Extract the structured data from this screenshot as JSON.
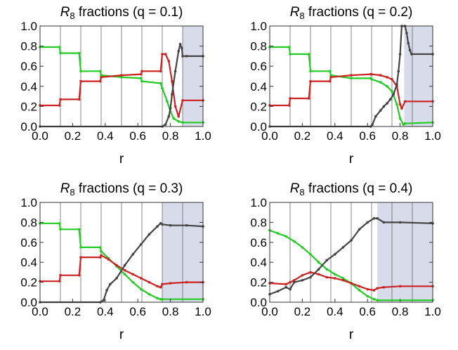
{
  "chart_data": [
    {
      "type": "line",
      "title": {
        "symbol": "R",
        "subscript": "8",
        "rest": "fractions (q = 0.1)"
      },
      "xlabel": "r",
      "ylabel": "",
      "xlim": [
        0,
        1
      ],
      "ylim": [
        0,
        1
      ],
      "xticks": [
        "0.0",
        "0.2",
        "0.4",
        "0.6",
        "0.8",
        "1.0"
      ],
      "yticks": [
        "0.0",
        "0.2",
        "0.4",
        "0.6",
        "0.8",
        "1.0"
      ],
      "vlines": [
        0.125,
        0.25,
        0.375,
        0.5,
        0.625,
        0.75,
        0.875
      ],
      "shaded_region": [
        0.875,
        1.0
      ],
      "series": [
        {
          "color": "#22cc22",
          "x": [
            0,
            0.12,
            0.125,
            0.24,
            0.25,
            0.37,
            0.375,
            0.5,
            0.62,
            0.625,
            0.74,
            0.75,
            0.78,
            0.8,
            0.82,
            0.85,
            0.875,
            1.0
          ],
          "y": [
            0.79,
            0.79,
            0.73,
            0.73,
            0.55,
            0.55,
            0.51,
            0.49,
            0.48,
            0.45,
            0.43,
            0.38,
            0.25,
            0.15,
            0.08,
            0.05,
            0.04,
            0.04
          ]
        },
        {
          "color": "#cc2222",
          "x": [
            0,
            0.12,
            0.125,
            0.24,
            0.25,
            0.37,
            0.375,
            0.5,
            0.62,
            0.625,
            0.74,
            0.75,
            0.77,
            0.79,
            0.81,
            0.83,
            0.85,
            0.875,
            1.0
          ],
          "y": [
            0.21,
            0.21,
            0.27,
            0.27,
            0.45,
            0.45,
            0.49,
            0.51,
            0.52,
            0.55,
            0.55,
            0.72,
            0.72,
            0.65,
            0.45,
            0.2,
            0.1,
            0.26,
            0.26
          ]
        },
        {
          "color": "#444444",
          "x": [
            0,
            0.75,
            0.77,
            0.79,
            0.8,
            0.81,
            0.83,
            0.85,
            0.86,
            0.87,
            0.875,
            0.9,
            1.0
          ],
          "y": [
            0,
            0,
            0.02,
            0.1,
            0.18,
            0.32,
            0.55,
            0.75,
            0.82,
            0.78,
            0.7,
            0.7,
            0.7
          ]
        }
      ]
    },
    {
      "type": "line",
      "title": {
        "symbol": "R",
        "subscript": "8",
        "rest": "fractions (q = 0.2)"
      },
      "xlabel": "r",
      "ylabel": "",
      "xlim": [
        0,
        1
      ],
      "ylim": [
        0,
        1
      ],
      "xticks": [
        "0.0",
        "0.2",
        "0.4",
        "0.6",
        "0.8",
        "1.0"
      ],
      "yticks": [
        "0.0",
        "0.2",
        "0.4",
        "0.6",
        "0.8",
        "1.0"
      ],
      "vlines": [
        0.125,
        0.25,
        0.375,
        0.5,
        0.625,
        0.75,
        0.875
      ],
      "shaded_region": [
        0.825,
        1.0
      ],
      "series": [
        {
          "color": "#22cc22",
          "x": [
            0,
            0.12,
            0.125,
            0.24,
            0.25,
            0.37,
            0.375,
            0.5,
            0.62,
            0.625,
            0.68,
            0.72,
            0.75,
            0.78,
            0.8,
            0.82,
            0.83,
            1.0
          ],
          "y": [
            0.79,
            0.79,
            0.72,
            0.72,
            0.55,
            0.55,
            0.51,
            0.48,
            0.48,
            0.47,
            0.44,
            0.4,
            0.35,
            0.22,
            0.08,
            0.02,
            0.03,
            0.04
          ]
        },
        {
          "color": "#cc2222",
          "x": [
            0,
            0.12,
            0.125,
            0.24,
            0.25,
            0.37,
            0.375,
            0.5,
            0.62,
            0.625,
            0.68,
            0.72,
            0.75,
            0.78,
            0.8,
            0.81,
            0.83,
            1.0
          ],
          "y": [
            0.21,
            0.21,
            0.28,
            0.28,
            0.45,
            0.45,
            0.49,
            0.51,
            0.52,
            0.52,
            0.51,
            0.49,
            0.47,
            0.4,
            0.22,
            0.18,
            0.25,
            0.25
          ]
        },
        {
          "color": "#444444",
          "x": [
            0,
            0.62,
            0.63,
            0.65,
            0.68,
            0.7,
            0.72,
            0.74,
            0.76,
            0.78,
            0.79,
            0.8,
            0.81,
            0.83,
            0.84,
            0.85,
            0.86,
            0.87,
            1.0
          ],
          "y": [
            0,
            0,
            0.02,
            0.1,
            0.16,
            0.2,
            0.23,
            0.27,
            0.32,
            0.42,
            0.55,
            0.72,
            1.0,
            1.0,
            0.93,
            0.83,
            0.76,
            0.72,
            0.72
          ]
        }
      ]
    },
    {
      "type": "line",
      "title": {
        "symbol": "R",
        "subscript": "8",
        "rest": "fractions (q = 0.3)"
      },
      "xlabel": "r",
      "ylabel": "",
      "xlim": [
        0,
        1
      ],
      "ylim": [
        0,
        1
      ],
      "xticks": [
        "0.0",
        "0.2",
        "0.4",
        "0.6",
        "0.8",
        "1.0"
      ],
      "yticks": [
        "0.0",
        "0.2",
        "0.4",
        "0.6",
        "0.8",
        "1.0"
      ],
      "vlines": [
        0.125,
        0.25,
        0.375,
        0.5,
        0.625,
        0.75,
        0.875
      ],
      "shaded_region": [
        0.75,
        1.0
      ],
      "series": [
        {
          "color": "#22cc22",
          "x": [
            0,
            0.12,
            0.125,
            0.24,
            0.25,
            0.37,
            0.375,
            0.42,
            0.47,
            0.52,
            0.57,
            0.62,
            0.67,
            0.72,
            0.74,
            0.75,
            1.0
          ],
          "y": [
            0.79,
            0.79,
            0.73,
            0.73,
            0.55,
            0.55,
            0.51,
            0.44,
            0.36,
            0.28,
            0.2,
            0.13,
            0.08,
            0.04,
            0.03,
            0.03,
            0.03
          ]
        },
        {
          "color": "#cc2222",
          "x": [
            0,
            0.12,
            0.125,
            0.24,
            0.25,
            0.37,
            0.375,
            0.42,
            0.47,
            0.52,
            0.57,
            0.62,
            0.67,
            0.72,
            0.74,
            0.75,
            0.8,
            0.9,
            1.0
          ],
          "y": [
            0.21,
            0.21,
            0.27,
            0.27,
            0.45,
            0.45,
            0.47,
            0.43,
            0.37,
            0.32,
            0.28,
            0.24,
            0.2,
            0.16,
            0.15,
            0.18,
            0.19,
            0.2,
            0.2
          ]
        },
        {
          "color": "#444444",
          "x": [
            0,
            0.37,
            0.39,
            0.41,
            0.43,
            0.47,
            0.52,
            0.57,
            0.62,
            0.67,
            0.72,
            0.74,
            0.75,
            0.8,
            0.9,
            1.0
          ],
          "y": [
            0,
            0,
            0.02,
            0.12,
            0.18,
            0.24,
            0.37,
            0.48,
            0.58,
            0.68,
            0.76,
            0.79,
            0.78,
            0.77,
            0.77,
            0.76
          ]
        }
      ]
    },
    {
      "type": "line",
      "title": {
        "symbol": "R",
        "subscript": "8",
        "rest": "fractions (q = 0.4)"
      },
      "xlabel": "r",
      "ylabel": "",
      "xlim": [
        0,
        1
      ],
      "ylim": [
        0,
        1
      ],
      "xticks": [
        "0.0",
        "0.2",
        "0.4",
        "0.6",
        "0.8",
        "1.0"
      ],
      "yticks": [
        "0.0",
        "0.2",
        "0.4",
        "0.6",
        "0.8",
        "1.0"
      ],
      "vlines": [
        0.125,
        0.25,
        0.375,
        0.5,
        0.625,
        0.75,
        0.875
      ],
      "shaded_region": [
        0.66,
        1.0
      ],
      "series": [
        {
          "color": "#22cc22",
          "x": [
            0,
            0.05,
            0.1,
            0.15,
            0.2,
            0.25,
            0.3,
            0.35,
            0.4,
            0.45,
            0.5,
            0.55,
            0.6,
            0.64,
            0.66,
            1.0
          ],
          "y": [
            0.72,
            0.69,
            0.66,
            0.61,
            0.55,
            0.48,
            0.4,
            0.33,
            0.28,
            0.24,
            0.19,
            0.12,
            0.06,
            0.03,
            0.02,
            0.02
          ]
        },
        {
          "color": "#cc2222",
          "x": [
            0,
            0.1,
            0.125,
            0.15,
            0.2,
            0.25,
            0.3,
            0.35,
            0.4,
            0.45,
            0.5,
            0.55,
            0.6,
            0.64,
            0.66,
            0.7,
            0.8,
            1.0
          ],
          "y": [
            0.19,
            0.18,
            0.2,
            0.22,
            0.27,
            0.3,
            0.28,
            0.25,
            0.24,
            0.22,
            0.19,
            0.16,
            0.13,
            0.12,
            0.14,
            0.15,
            0.16,
            0.16
          ]
        },
        {
          "color": "#444444",
          "x": [
            0,
            0.05,
            0.1,
            0.125,
            0.15,
            0.2,
            0.25,
            0.3,
            0.35,
            0.4,
            0.45,
            0.5,
            0.55,
            0.6,
            0.64,
            0.66,
            0.7,
            0.8,
            1.0
          ],
          "y": [
            0.08,
            0.11,
            0.15,
            0.13,
            0.2,
            0.22,
            0.25,
            0.33,
            0.42,
            0.48,
            0.55,
            0.62,
            0.73,
            0.8,
            0.84,
            0.84,
            0.8,
            0.8,
            0.79
          ]
        }
      ]
    }
  ]
}
